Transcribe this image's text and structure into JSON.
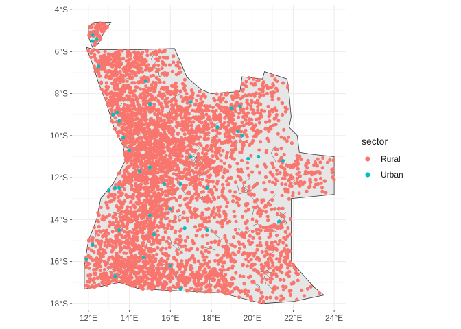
{
  "chart_data": {
    "type": "scatter",
    "subtype": "choropleth-point-map",
    "background": "#ffffff",
    "grid": true,
    "grid_color": "#ebebeb",
    "region_fill": "#e6e6e6",
    "region_stroke": "#333333",
    "xlim": [
      11.2,
      24.6
    ],
    "ylim": [
      -18.3,
      -3.8
    ],
    "x_ticks": [
      {
        "value": 12,
        "label": "12°E"
      },
      {
        "value": 14,
        "label": "14°E"
      },
      {
        "value": 16,
        "label": "16°E"
      },
      {
        "value": 18,
        "label": "18°E"
      },
      {
        "value": 20,
        "label": "20°E"
      },
      {
        "value": 22,
        "label": "22°E"
      },
      {
        "value": 24,
        "label": "24°E"
      }
    ],
    "y_ticks": [
      {
        "value": -4,
        "label": "4°S"
      },
      {
        "value": -6,
        "label": "6°S"
      },
      {
        "value": -8,
        "label": "8°S"
      },
      {
        "value": -10,
        "label": "10°S"
      },
      {
        "value": -12,
        "label": "12°S"
      },
      {
        "value": -14,
        "label": "14°S"
      },
      {
        "value": -16,
        "label": "16°S"
      },
      {
        "value": -18,
        "label": "18°S"
      }
    ],
    "legend": {
      "title": "sector",
      "position": "right",
      "entries": [
        {
          "name": "Rural",
          "color": "#F8766D"
        },
        {
          "name": "Urban",
          "color": "#00BFC4"
        }
      ]
    },
    "outline": [
      [
        11.9,
        -5.8
      ],
      [
        12.3,
        -5.9
      ],
      [
        13.0,
        -5.9
      ],
      [
        14.5,
        -5.9
      ],
      [
        16.2,
        -5.85
      ],
      [
        16.5,
        -6.5
      ],
      [
        16.8,
        -7.2
      ],
      [
        17.5,
        -7.8
      ],
      [
        18.0,
        -8.0
      ],
      [
        18.5,
        -7.95
      ],
      [
        19.4,
        -7.9
      ],
      [
        19.5,
        -7.2
      ],
      [
        20.5,
        -7.3
      ],
      [
        20.6,
        -6.95
      ],
      [
        21.7,
        -7.3
      ],
      [
        21.8,
        -8.0
      ],
      [
        21.9,
        -9.1
      ],
      [
        21.8,
        -9.6
      ],
      [
        22.2,
        -10.0
      ],
      [
        22.3,
        -10.8
      ],
      [
        23.0,
        -10.9
      ],
      [
        24.0,
        -11.0
      ],
      [
        24.0,
        -12.8
      ],
      [
        21.9,
        -13.0
      ],
      [
        21.9,
        -16.0
      ],
      [
        23.0,
        -17.2
      ],
      [
        23.5,
        -17.6
      ],
      [
        22.0,
        -17.9
      ],
      [
        20.5,
        -18.0
      ],
      [
        18.5,
        -17.5
      ],
      [
        16.5,
        -17.4
      ],
      [
        14.5,
        -17.3
      ],
      [
        13.5,
        -17.0
      ],
      [
        12.5,
        -17.2
      ],
      [
        11.8,
        -17.3
      ],
      [
        11.8,
        -16.2
      ],
      [
        12.0,
        -15.0
      ],
      [
        12.4,
        -14.0
      ],
      [
        12.6,
        -13.0
      ],
      [
        13.2,
        -12.3
      ],
      [
        13.8,
        -11.2
      ],
      [
        13.7,
        -10.5
      ],
      [
        13.2,
        -9.5
      ],
      [
        12.9,
        -8.5
      ],
      [
        12.5,
        -7.5
      ],
      [
        12.2,
        -6.6
      ],
      [
        11.9,
        -5.8
      ]
    ],
    "cabinda": [
      [
        12.0,
        -4.8
      ],
      [
        12.3,
        -4.6
      ],
      [
        13.1,
        -4.6
      ],
      [
        12.8,
        -5.0
      ],
      [
        12.5,
        -5.6
      ],
      [
        12.2,
        -5.8
      ],
      [
        12.0,
        -5.3
      ],
      [
        12.0,
        -4.8
      ]
    ],
    "rural_clusters": [
      {
        "center": [
          15.4,
          -9.5
        ],
        "spread": [
          1.5,
          1.6
        ],
        "count": 900
      },
      {
        "center": [
          14.6,
          -13.0
        ],
        "spread": [
          0.8,
          2.3
        ],
        "count": 800
      },
      {
        "center": [
          13.3,
          -8.0
        ],
        "spread": [
          0.9,
          1.6
        ],
        "count": 400
      },
      {
        "center": [
          16.5,
          -11.5
        ],
        "spread": [
          1.5,
          1.3
        ],
        "count": 600
      },
      {
        "center": [
          13.5,
          -15.5
        ],
        "spread": [
          1.2,
          1.1
        ],
        "count": 420
      },
      {
        "center": [
          15.5,
          -16.8
        ],
        "spread": [
          1.9,
          0.5
        ],
        "count": 420
      },
      {
        "center": [
          18.5,
          -9.0
        ],
        "spread": [
          1.0,
          1.0
        ],
        "count": 280
      },
      {
        "center": [
          20.5,
          -8.5
        ],
        "spread": [
          1.2,
          1.1
        ],
        "count": 220
      },
      {
        "center": [
          22.8,
          -11.8
        ],
        "spread": [
          1.0,
          0.5
        ],
        "count": 110
      },
      {
        "center": [
          21.0,
          -12.5
        ],
        "spread": [
          1.0,
          1.0
        ],
        "count": 80
      },
      {
        "center": [
          21.0,
          -15.2
        ],
        "spread": [
          0.8,
          1.0
        ],
        "count": 160
      },
      {
        "center": [
          19.0,
          -13.5
        ],
        "spread": [
          1.3,
          1.5
        ],
        "count": 110
      },
      {
        "center": [
          20.5,
          -16.8
        ],
        "spread": [
          1.8,
          0.9
        ],
        "count": 200
      },
      {
        "center": [
          12.6,
          -5.0
        ],
        "spread": [
          0.4,
          0.3
        ],
        "count": 90
      },
      {
        "center": [
          17.5,
          -15.8
        ],
        "spread": [
          1.0,
          1.3
        ],
        "count": 120
      },
      {
        "center": [
          13.6,
          -6.5
        ],
        "spread": [
          1.2,
          0.4
        ],
        "count": 200
      }
    ],
    "urban_points": [
      [
        12.2,
        -5.2
      ],
      [
        12.4,
        -5.4
      ],
      [
        12.2,
        -5.5
      ],
      [
        12.5,
        -6.7
      ],
      [
        14.8,
        -7.4
      ],
      [
        15.0,
        -8.5
      ],
      [
        17.0,
        -8.4
      ],
      [
        19.0,
        -8.7
      ],
      [
        19.4,
        -8.6
      ],
      [
        18.3,
        -9.6
      ],
      [
        19.3,
        -9.8
      ],
      [
        19.5,
        -10.0
      ],
      [
        13.5,
        -9.3
      ],
      [
        13.2,
        -9.0
      ],
      [
        13.4,
        -8.9
      ],
      [
        13.7,
        -10.1
      ],
      [
        14.0,
        -10.7
      ],
      [
        14.5,
        -11.7
      ],
      [
        13.3,
        -12.5
      ],
      [
        13.0,
        -12.6
      ],
      [
        13.5,
        -12.5
      ],
      [
        15.0,
        -11.5
      ],
      [
        16.5,
        -12.3
      ],
      [
        17.0,
        -11.0
      ],
      [
        17.8,
        -12.5
      ],
      [
        19.8,
        -11.1
      ],
      [
        21.5,
        -11.2
      ],
      [
        20.3,
        -11.0
      ],
      [
        15.7,
        -12.3
      ],
      [
        16.0,
        -13.5
      ],
      [
        16.7,
        -14.4
      ],
      [
        15.2,
        -14.7
      ],
      [
        13.5,
        -14.5
      ],
      [
        12.2,
        -15.2
      ],
      [
        11.9,
        -15.9
      ],
      [
        14.7,
        -15.8
      ],
      [
        16.0,
        -16.2
      ],
      [
        13.3,
        -16.7
      ],
      [
        16.5,
        -17.3
      ],
      [
        21.3,
        -14.1
      ],
      [
        17.8,
        -14.5
      ],
      [
        15.0,
        -13.8
      ]
    ]
  }
}
